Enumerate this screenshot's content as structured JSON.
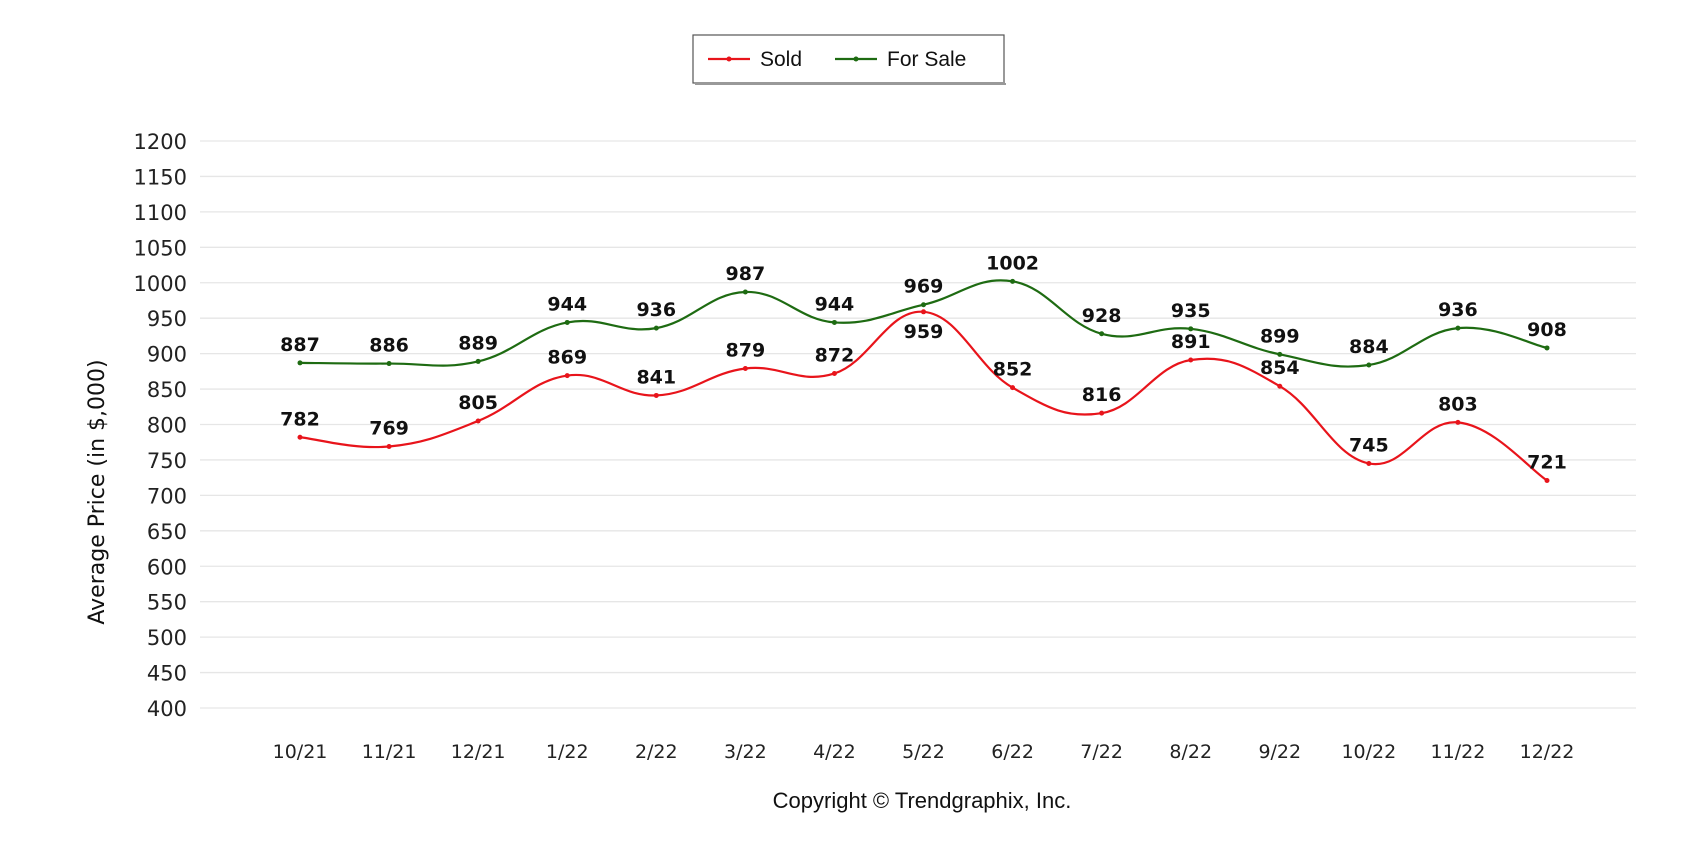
{
  "chart_data": {
    "type": "line",
    "title": "",
    "xlabel": "",
    "ylabel": "Average Price (in $,000)",
    "footer": "Copyright © Trendgraphix, Inc.",
    "categories": [
      "10/21",
      "11/21",
      "12/21",
      "1/22",
      "2/22",
      "3/22",
      "4/22",
      "5/22",
      "6/22",
      "7/22",
      "8/22",
      "9/22",
      "10/22",
      "11/22",
      "12/22"
    ],
    "ylim": [
      400,
      1200
    ],
    "yticks": [
      1200,
      1150,
      1100,
      1050,
      1000,
      950,
      900,
      850,
      800,
      750,
      700,
      650,
      600,
      550,
      500,
      450,
      400
    ],
    "grid": true,
    "legend_position": "top-center",
    "series": [
      {
        "name": "Sold",
        "color": "#e8141b",
        "values": [
          782,
          769,
          805,
          869,
          841,
          879,
          872,
          959,
          852,
          816,
          891,
          854,
          745,
          803,
          721
        ]
      },
      {
        "name": "For Sale",
        "color": "#1e6b12",
        "values": [
          887,
          886,
          889,
          944,
          936,
          987,
          944,
          969,
          1002,
          928,
          935,
          899,
          884,
          936,
          908
        ]
      }
    ]
  }
}
